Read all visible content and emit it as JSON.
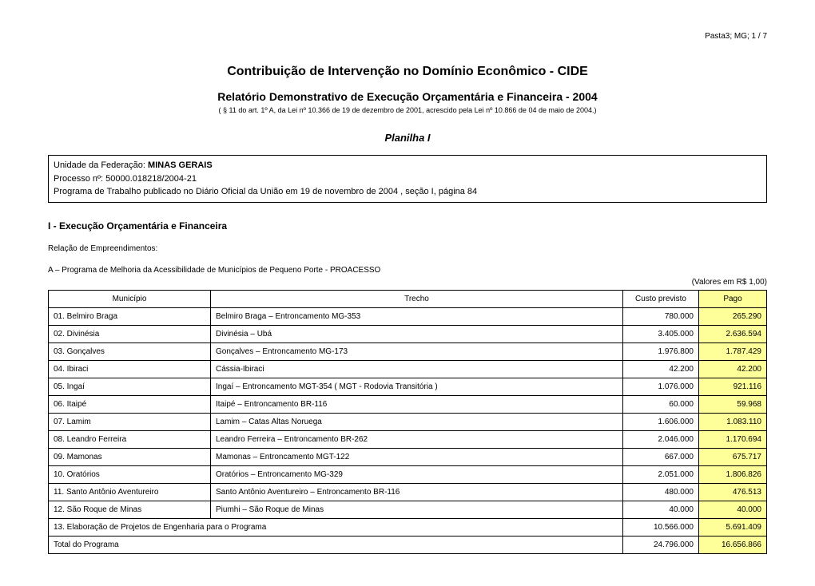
{
  "page_header": "Pasta3; MG; 1 / 7",
  "title": "Contribuição de Intervenção no Domínio Econômico  -  CIDE",
  "subtitle": "Relatório Demonstrativo de Execução Orçamentária e Financeira - 2004",
  "legal": "( § 11 do art. 1º A, da Lei nº 10.366 de 19 de dezembro de 2001, acrescido pela Lei nº 10.866 de 04 de maio de 2004.)",
  "planilha": "Planilha I",
  "info": {
    "unidade_label": "Unidade da Federação: ",
    "unidade_value": "MINAS GERAIS",
    "processo": "Processo nº: 50000.018218/2004-21",
    "programa_publicado": "Programa de Trabalho publicado no Diário Oficial da União em 19 de novembro de 2004 , seção I, página 84"
  },
  "section_title": "I - Execução Orçamentária e Financeira",
  "relacao": "Relação de Empreendimentos:",
  "programa_label": "A – Programa de Melhoria da Acessibilidade de Municípios de Pequeno Porte  -  PROACESSO",
  "valores": "(Valores em R$ 1,00)",
  "table": {
    "headers": {
      "municipio": "Município",
      "trecho": "Trecho",
      "custo": "Custo previsto",
      "pago": "Pago"
    },
    "pago_bg_color": "#ffff99",
    "rows": [
      {
        "municipio": "01. Belmiro Braga",
        "trecho": "Belmiro Braga – Entroncamento MG-353",
        "custo": "780.000",
        "pago": "265.290"
      },
      {
        "municipio": "02. Divinésia",
        "trecho": "Divinésia – Ubá",
        "custo": "3.405.000",
        "pago": "2.636.594"
      },
      {
        "municipio": "03. Gonçalves",
        "trecho": "Gonçalves – Entroncamento MG-173",
        "custo": "1.976.800",
        "pago": "1.787.429"
      },
      {
        "municipio": "04. Ibiraci",
        "trecho": "Cássia-Ibiraci",
        "custo": "42.200",
        "pago": "42.200"
      },
      {
        "municipio": "05. Ingaí",
        "trecho": "Ingaí – Entroncamento MGT-354 ( MGT - Rodovia Transitória )",
        "custo": "1.076.000",
        "pago": "921.116"
      },
      {
        "municipio": "06. Itaipé",
        "trecho": "Itaipé – Entroncamento BR-116",
        "custo": "60.000",
        "pago": "59.968"
      },
      {
        "municipio": "07. Lamim",
        "trecho": "Lamim – Catas Altas Noruega",
        "custo": "1.606.000",
        "pago": "1.083.110"
      },
      {
        "municipio": "08. Leandro Ferreira",
        "trecho": "Leandro Ferreira – Entroncamento BR-262",
        "custo": "2.046.000",
        "pago": "1.170.694"
      },
      {
        "municipio": "09. Mamonas",
        "trecho": "Mamonas – Entroncamento MGT-122",
        "custo": "667.000",
        "pago": "675.717"
      },
      {
        "municipio": "10. Oratórios",
        "trecho": "Oratórios – Entroncamento MG-329",
        "custo": "2.051.000",
        "pago": "1.806.826"
      },
      {
        "municipio": "11. Santo Antônio Aventureiro",
        "trecho": "Santo Antônio Aventureiro – Entroncamento BR-116",
        "custo": "480.000",
        "pago": "476.513"
      },
      {
        "municipio": "12. São Roque de Minas",
        "trecho": "Piumhi – São Roque de Minas",
        "custo": "40.000",
        "pago": "40.000"
      }
    ],
    "summary_rows": [
      {
        "label": "13. Elaboração de Projetos de Engenharia para o Programa",
        "custo": "10.566.000",
        "pago": "5.691.409"
      },
      {
        "label": "Total do Programa",
        "custo": "24.796.000",
        "pago": "16.656.866"
      }
    ]
  }
}
